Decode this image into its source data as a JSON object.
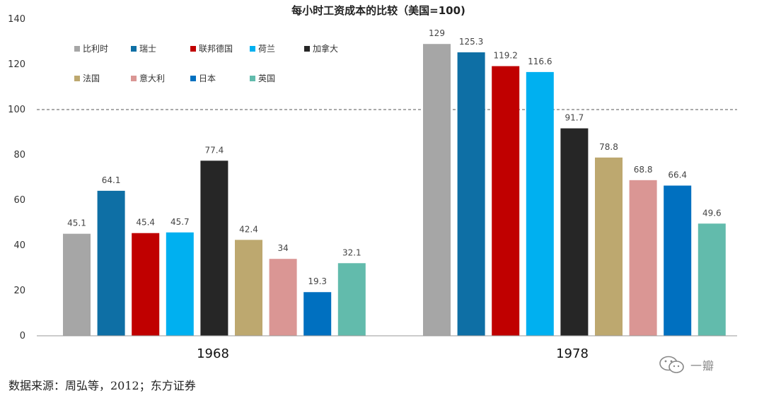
{
  "chart_data": {
    "type": "bar",
    "title": "每小时工资成本的比较（美国=100)",
    "categories": [
      "1968",
      "1978"
    ],
    "series": [
      {
        "name": "比利时",
        "color": "#a6a6a6",
        "values": [
          45.1,
          129
        ]
      },
      {
        "name": "瑞士",
        "color": "#0e6fa5",
        "values": [
          64.1,
          125.3
        ]
      },
      {
        "name": "联邦德国",
        "color": "#c00000",
        "values": [
          45.4,
          119.2
        ]
      },
      {
        "name": "荷兰",
        "color": "#00b0f0",
        "values": [
          45.7,
          116.6
        ]
      },
      {
        "name": "加拿大",
        "color": "#262626",
        "values": [
          77.4,
          91.7
        ]
      },
      {
        "name": "法国",
        "color": "#bda86f",
        "values": [
          42.4,
          78.8
        ]
      },
      {
        "name": "意大利",
        "color": "#da9694",
        "values": [
          34,
          68.8
        ]
      },
      {
        "name": "日本",
        "color": "#0070c0",
        "values": [
          19.3,
          66.4
        ]
      },
      {
        "name": "英国",
        "color": "#62bbac",
        "values": [
          32.1,
          49.6
        ]
      }
    ],
    "value_labels": [
      [
        "45.1",
        "129"
      ],
      [
        "64.1",
        "125.3"
      ],
      [
        "45.4",
        "119.2"
      ],
      [
        "45.7",
        "116.6"
      ],
      [
        "77.4",
        "91.7"
      ],
      [
        "42.4",
        "78.8"
      ],
      [
        "34",
        "68.8"
      ],
      [
        "19.3",
        "66.4"
      ],
      [
        "32.1",
        "49.6"
      ]
    ],
    "y_ticks": [
      "0",
      "20",
      "40",
      "60",
      "80",
      "100",
      "120",
      "140"
    ],
    "ylim": [
      0,
      140
    ],
    "reference_line": 100,
    "grid": false,
    "legend": "top-left"
  },
  "source": "数据来源：周弘等，2012；东方证券",
  "watermark": "一瓣"
}
